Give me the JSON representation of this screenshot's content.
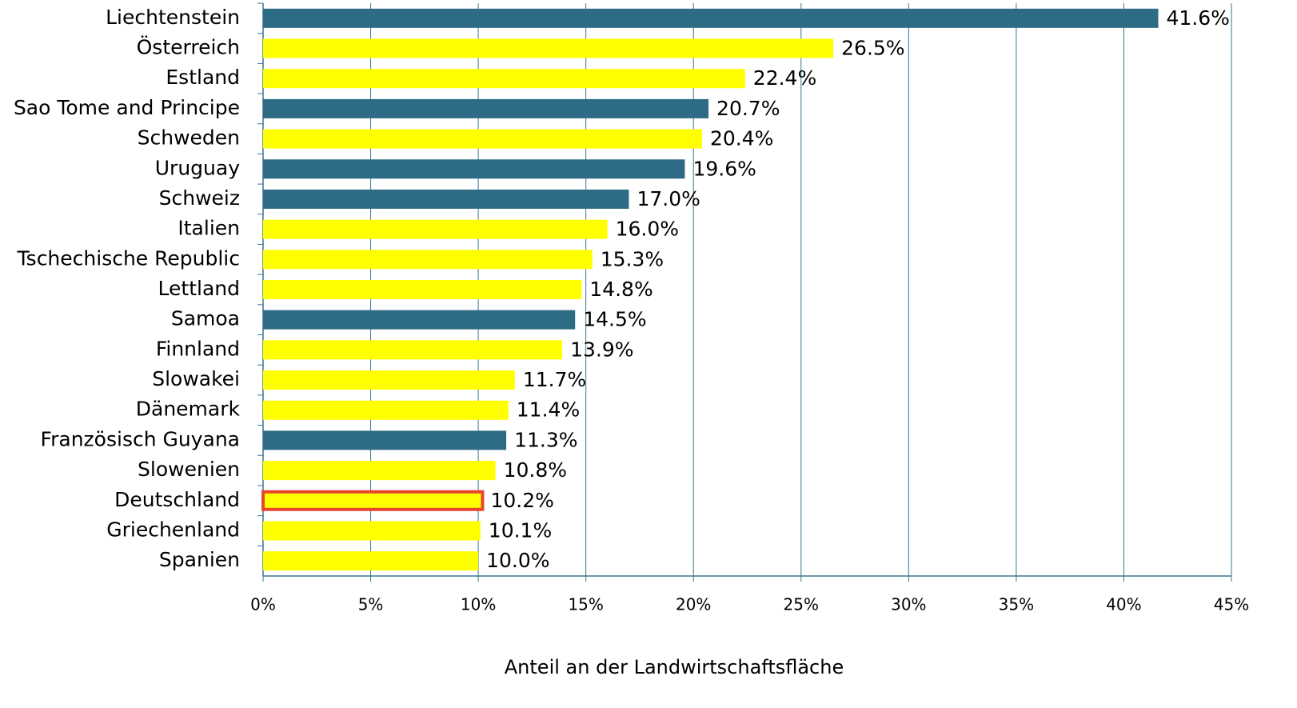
{
  "chart_data": {
    "type": "barh",
    "categories": [
      "Liechtenstein",
      "Österreich",
      "Estland",
      "Sao Tome and Principe",
      "Schweden",
      "Uruguay",
      "Schweiz",
      "Italien",
      "Tschechische Republic",
      "Lettland",
      "Samoa",
      "Finnland",
      "Slowakei",
      "Dänemark",
      "Französisch Guyana",
      "Slowenien",
      "Deutschland",
      "Griechenland",
      "Spanien"
    ],
    "values": [
      41.6,
      26.5,
      22.4,
      20.7,
      20.4,
      19.6,
      17.0,
      16.0,
      15.3,
      14.8,
      14.5,
      13.9,
      11.7,
      11.4,
      11.3,
      10.8,
      10.2,
      10.1,
      10.0
    ],
    "value_labels": [
      "41.6%",
      "26.5%",
      "22.4%",
      "20.7%",
      "20.4%",
      "19.6%",
      "17.0%",
      "16.0%",
      "15.3%",
      "14.8%",
      "14.5%",
      "13.9%",
      "11.7%",
      "11.4%",
      "11.3%",
      "10.8%",
      "10.2%",
      "10.1%",
      "10.0%"
    ],
    "colors": [
      "#2e6b84",
      "#ffff00",
      "#ffff00",
      "#2e6b84",
      "#ffff00",
      "#2e6b84",
      "#2e6b84",
      "#ffff00",
      "#ffff00",
      "#ffff00",
      "#2e6b84",
      "#ffff00",
      "#ffff00",
      "#ffff00",
      "#2e6b84",
      "#ffff00",
      "#ffff00",
      "#ffff00",
      "#ffff00"
    ],
    "highlight": {
      "index": 16,
      "edgecolor": "#e8452c"
    },
    "xlabel": "Anteil an der Landwirtschaftsfläche",
    "xlim": [
      0,
      45
    ],
    "xticks": [
      {
        "value": 0,
        "label": "0%"
      },
      {
        "value": 5,
        "label": "5%"
      },
      {
        "value": 10,
        "label": "10%"
      },
      {
        "value": 15,
        "label": "15%"
      },
      {
        "value": 20,
        "label": "20%"
      },
      {
        "value": 25,
        "label": "25%"
      },
      {
        "value": 30,
        "label": "30%"
      },
      {
        "value": 35,
        "label": "35%"
      },
      {
        "value": 40,
        "label": "40%"
      },
      {
        "value": 45,
        "label": "45%"
      }
    ],
    "grid": true,
    "gridcolor": "#3d7590"
  }
}
